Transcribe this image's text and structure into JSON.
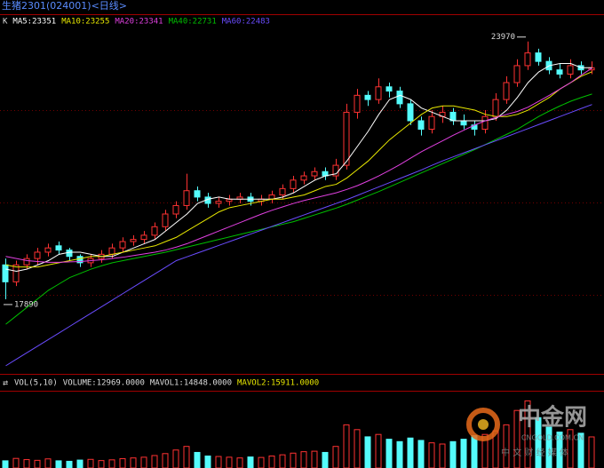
{
  "chart_data": {
    "type": "candlestick",
    "title": "生猪2301(024001)<日线>",
    "legend_prefix": "K",
    "ylim": [
      16150,
      24320
    ],
    "up_color": "#ff3232",
    "down_color": "#54fcfc",
    "open": [
      18700,
      18300,
      18700,
      18850,
      19000,
      19150,
      19050,
      18900,
      18750,
      18850,
      18950,
      19100,
      19250,
      19300,
      19400,
      19600,
      19900,
      20100,
      20450,
      20300,
      20150,
      20200,
      20250,
      20300,
      20200,
      20250,
      20350,
      20500,
      20700,
      20800,
      20900,
      20800,
      21050,
      22300,
      22700,
      22600,
      22900,
      22800,
      22500,
      22100,
      21900,
      22200,
      22300,
      22100,
      22000,
      21900,
      22200,
      22600,
      23000,
      23400,
      23700,
      23500,
      23300,
      23200,
      23400,
      23300
    ],
    "high": [
      18850,
      18800,
      18950,
      19100,
      19200,
      19250,
      19100,
      18950,
      18950,
      19050,
      19200,
      19350,
      19400,
      19500,
      19700,
      20000,
      20200,
      20850,
      20550,
      20400,
      20300,
      20350,
      20400,
      20400,
      20350,
      20450,
      20600,
      20800,
      20900,
      21000,
      21000,
      21200,
      22500,
      22850,
      22800,
      23100,
      23000,
      22900,
      22600,
      22200,
      22350,
      22450,
      22400,
      22250,
      22100,
      22350,
      22750,
      23150,
      23550,
      23970,
      23800,
      23600,
      23450,
      23550,
      23500,
      23500
    ],
    "low": [
      17890,
      18200,
      18600,
      18700,
      18900,
      18950,
      18800,
      18650,
      18650,
      18750,
      18850,
      19000,
      19150,
      19200,
      19300,
      19500,
      19800,
      20000,
      20200,
      20050,
      20050,
      20100,
      20150,
      20100,
      20100,
      20150,
      20250,
      20400,
      20600,
      20700,
      20700,
      20700,
      20950,
      22150,
      22450,
      22500,
      22650,
      22400,
      22000,
      21750,
      21800,
      22050,
      22000,
      21900,
      21750,
      21800,
      22100,
      22500,
      22900,
      23300,
      23400,
      23200,
      23100,
      23100,
      23200,
      23200
    ],
    "close": [
      18300,
      18700,
      18850,
      19000,
      19100,
      19050,
      18900,
      18750,
      18850,
      18950,
      19100,
      19250,
      19300,
      19400,
      19600,
      19900,
      20100,
      20450,
      20300,
      20150,
      20200,
      20250,
      20300,
      20200,
      20250,
      20350,
      20500,
      20700,
      20800,
      20900,
      20800,
      21050,
      22300,
      22700,
      22600,
      22900,
      22800,
      22500,
      22100,
      21900,
      22200,
      22300,
      22100,
      22000,
      21900,
      22200,
      22600,
      23000,
      23400,
      23700,
      23500,
      23300,
      23200,
      23400,
      23300,
      23350
    ],
    "annotations": [
      23970,
      17890
    ],
    "series": [
      {
        "name": "MA5",
        "label": "MA5:23351",
        "color": "#ffffff",
        "values": [
          18600,
          18550,
          18600,
          18700,
          18800,
          18950,
          19000,
          19000,
          18950,
          18900,
          18900,
          19000,
          19100,
          19200,
          19300,
          19500,
          19700,
          19900,
          20150,
          20250,
          20300,
          20250,
          20250,
          20250,
          20250,
          20250,
          20300,
          20400,
          20550,
          20700,
          20800,
          20850,
          21150,
          21500,
          21850,
          22250,
          22600,
          22700,
          22600,
          22400,
          22300,
          22200,
          22100,
          22100,
          22100,
          22100,
          22150,
          22350,
          22650,
          23000,
          23250,
          23400,
          23450,
          23450,
          23350,
          23351
        ]
      },
      {
        "name": "MA10",
        "label": "MA10:23255",
        "color": "#e8e800",
        "values": [
          18700,
          18650,
          18650,
          18650,
          18700,
          18750,
          18800,
          18850,
          18900,
          18900,
          18950,
          19000,
          19050,
          19100,
          19150,
          19250,
          19350,
          19500,
          19650,
          19800,
          19950,
          20050,
          20100,
          20150,
          20200,
          20250,
          20250,
          20300,
          20350,
          20450,
          20550,
          20600,
          20750,
          20950,
          21150,
          21400,
          21650,
          21850,
          22050,
          22250,
          22400,
          22450,
          22450,
          22400,
          22350,
          22250,
          22200,
          22200,
          22250,
          22350,
          22500,
          22650,
          22850,
          23000,
          23150,
          23255
        ]
      },
      {
        "name": "MA20",
        "label": "MA20:23341",
        "color": "#e040e0",
        "values": [
          18900,
          18850,
          18800,
          18780,
          18760,
          18760,
          18770,
          18780,
          18800,
          18820,
          18850,
          18880,
          18920,
          18960,
          19000,
          19050,
          19120,
          19200,
          19300,
          19400,
          19500,
          19600,
          19700,
          19800,
          19900,
          19990,
          20070,
          20150,
          20220,
          20280,
          20340,
          20400,
          20480,
          20570,
          20680,
          20800,
          20930,
          21070,
          21220,
          21370,
          21500,
          21630,
          21760,
          21880,
          22000,
          22100,
          22180,
          22250,
          22320,
          22420,
          22560,
          22700,
          22850,
          23000,
          23180,
          23341
        ]
      },
      {
        "name": "MA40",
        "label": "MA40:22731",
        "color": "#00c000",
        "values": [
          17300,
          17500,
          17700,
          17900,
          18100,
          18250,
          18400,
          18500,
          18600,
          18680,
          18750,
          18800,
          18850,
          18900,
          18950,
          19000,
          19060,
          19120,
          19180,
          19240,
          19300,
          19360,
          19420,
          19480,
          19540,
          19600,
          19660,
          19720,
          19800,
          19880,
          19960,
          20040,
          20130,
          20230,
          20330,
          20430,
          20540,
          20650,
          20760,
          20870,
          20980,
          21090,
          21200,
          21310,
          21420,
          21540,
          21660,
          21780,
          21900,
          22050,
          22200,
          22330,
          22450,
          22560,
          22650,
          22731
        ]
      },
      {
        "name": "MA60",
        "label": "MA60:22483",
        "color": "#6a4cff",
        "values": [
          16320,
          16475,
          16630,
          16785,
          16940,
          17095,
          17250,
          17405,
          17560,
          17715,
          17870,
          18025,
          18180,
          18335,
          18490,
          18645,
          18800,
          18890,
          18980,
          19070,
          19160,
          19250,
          19340,
          19430,
          19520,
          19610,
          19700,
          19790,
          19880,
          19970,
          20060,
          20150,
          20240,
          20340,
          20440,
          20540,
          20640,
          20740,
          20840,
          20940,
          21050,
          21155,
          21250,
          21345,
          21440,
          21535,
          21630,
          21725,
          21820,
          21915,
          22010,
          22105,
          22200,
          22295,
          22390,
          22483
        ]
      }
    ],
    "volume": {
      "title": "VOL(5,10)",
      "label": "VOLUME:12969.0000",
      "mavol_labels": [
        "MAVOL1:14848.0000",
        "MAVOL2:15911.0000"
      ],
      "label_colors": [
        "#dddddd",
        "#dddddd",
        "#e8e800"
      ],
      "ylim": [
        0,
        30000
      ],
      "values": [
        3000,
        4000,
        3500,
        3200,
        3800,
        3000,
        2800,
        3300,
        3600,
        3100,
        3400,
        3900,
        4200,
        4500,
        5200,
        6000,
        7500,
        9000,
        6500,
        5000,
        4800,
        4500,
        4200,
        4600,
        4400,
        5000,
        5500,
        6200,
        6800,
        7000,
        6500,
        9000,
        18000,
        16000,
        13000,
        14000,
        12000,
        11000,
        12500,
        11500,
        10500,
        10000,
        11000,
        12000,
        13500,
        14000,
        15500,
        18000,
        24000,
        28000,
        21000,
        17000,
        15000,
        16000,
        14500,
        12969
      ]
    }
  },
  "watermark": {
    "logo": "中金网",
    "site": "CNGOLD.COM.CN",
    "slogan": "中 文 财 经 媒 体"
  }
}
